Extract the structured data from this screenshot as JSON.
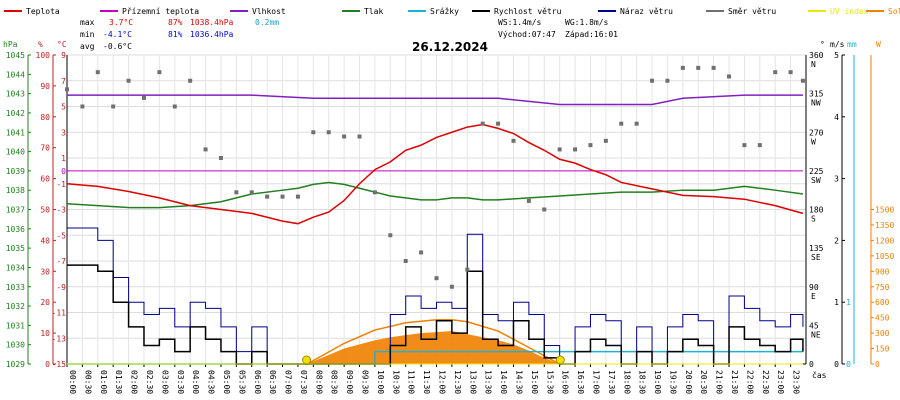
{
  "chart_data": {
    "type": "line",
    "title": "26.12.2024",
    "legend": [
      {
        "label": "Teplota",
        "color": "#dd0000"
      },
      {
        "label": "Přízemní teplota",
        "color": "#c000c0"
      },
      {
        "label": "Vlhkost",
        "color": "#8020c0"
      },
      {
        "label": "Tlak",
        "color": "#208020"
      },
      {
        "label": "Srážky",
        "color": "#20b0d0"
      },
      {
        "label": "Rychlost větru",
        "color": "#000000"
      },
      {
        "label": "Náraz větru",
        "color": "#000090"
      },
      {
        "label": "Směr větru",
        "color": "#707070"
      },
      {
        "label": "UV index",
        "color": "#e8e800"
      },
      {
        "label": "Solar",
        "color": "#f08000"
      }
    ],
    "stats": {
      "max_label": "max",
      "max_temp": "3.7°C",
      "max_hum": "87%",
      "max_press": "1038.4hPa",
      "max_rain": "0.2mm",
      "min_label": "min",
      "min_temp": "-4.1°C",
      "min_hum": "81%",
      "min_press": "1036.4hPa",
      "avg_label": "avg",
      "avg_temp": "-0.6°C",
      "ws": "WS:1.4m/s",
      "wg": "WG:1.8m/s",
      "sunrise": "Východ:07:47",
      "sunset": "Západ:16:01"
    },
    "axes": {
      "hpa_unit": "hPa",
      "pct_unit": "%",
      "temp_unit": "°C",
      "deg_unit": "°",
      "ms_unit": "m/s",
      "mm_unit": "mm",
      "w_unit": "W",
      "hpa_ticks": [
        "1029",
        "1030",
        "1031",
        "1032",
        "1033",
        "1034",
        "1035",
        "1036",
        "1037",
        "1038",
        "1039",
        "1040",
        "1041",
        "1042",
        "1043",
        "1044",
        "1045"
      ],
      "pct_ticks": [
        "0",
        "10",
        "20",
        "30",
        "40",
        "50",
        "60",
        "70",
        "80",
        "90",
        "100"
      ],
      "temp_ticks": [
        "-15",
        "-13",
        "-11",
        "-9",
        "-7",
        "-5",
        "-3",
        "-1",
        "1",
        "3",
        "5",
        "7",
        "9"
      ],
      "temp_zero": "0",
      "dir_ticks": [
        {
          "v": "360",
          "d": "N"
        },
        {
          "v": "315",
          "d": "NW"
        },
        {
          "v": "270",
          "d": "W"
        },
        {
          "v": "225",
          "d": "SW"
        },
        {
          "v": "180",
          "d": "S"
        },
        {
          "v": "135",
          "d": "SE"
        },
        {
          "v": "90",
          "d": "E"
        },
        {
          "v": "45",
          "d": "NE"
        },
        {
          "v": "0",
          "d": ""
        }
      ],
      "ms_ticks": [
        "0",
        "1",
        "2",
        "3",
        "4",
        "5"
      ],
      "mm_ticks": [
        "0",
        "1"
      ],
      "w_ticks": [
        "0",
        "150",
        "300",
        "450",
        "600",
        "750",
        "900",
        "1050",
        "1200",
        "1350",
        "1500"
      ],
      "x_unit": "čas",
      "time_ticks": [
        "00:00",
        "00:30",
        "01:00",
        "01:30",
        "02:00",
        "02:30",
        "03:00",
        "03:30",
        "04:00",
        "04:30",
        "05:00",
        "05:30",
        "06:00",
        "06:30",
        "07:00",
        "07:30",
        "08:00",
        "08:30",
        "09:00",
        "09:30",
        "10:00",
        "10:30",
        "11:00",
        "11:30",
        "12:00",
        "12:30",
        "13:00",
        "13:30",
        "14:00",
        "14:30",
        "15:00",
        "15:30",
        "16:00",
        "16:30",
        "17:00",
        "17:30",
        "18:00",
        "18:30",
        "19:00",
        "19:30",
        "20:00",
        "20:30",
        "21:00",
        "21:30",
        "22:00",
        "22:30",
        "23:00",
        "23:30"
      ]
    },
    "ranges": {
      "temp": [
        -15,
        9
      ],
      "hum": [
        0,
        100
      ],
      "press": [
        1029,
        1045
      ],
      "wind": [
        0,
        5
      ],
      "dir": [
        0,
        360
      ],
      "rain": [
        0,
        1
      ],
      "solar": [
        0,
        1500
      ]
    },
    "series": {
      "temperature": {
        "t": [
          0,
          1,
          2,
          3,
          4,
          5,
          6,
          6.5,
          7,
          7.5,
          8,
          8.5,
          9,
          9.5,
          10,
          10.5,
          11,
          11.5,
          12,
          12.5,
          13,
          13.5,
          14,
          14.5,
          15,
          15.5,
          16,
          16.5,
          17,
          17.5,
          18,
          19,
          20,
          21,
          22,
          23,
          23.9
        ],
        "v": [
          -1.0,
          -1.2,
          -1.6,
          -2.1,
          -2.7,
          -3.0,
          -3.3,
          -3.6,
          -3.9,
          -4.1,
          -3.6,
          -3.2,
          -2.3,
          -1.0,
          0.1,
          0.7,
          1.6,
          2.0,
          2.6,
          3.0,
          3.4,
          3.6,
          3.3,
          2.9,
          2.2,
          1.6,
          0.9,
          0.6,
          0.1,
          -0.3,
          -0.9,
          -1.4,
          -1.9,
          -2.0,
          -2.2,
          -2.7,
          -3.3
        ]
      },
      "ground_temp": {
        "t": [
          0,
          23.9
        ],
        "v": [
          0,
          0
        ]
      },
      "humidity": {
        "t": [
          0,
          2,
          4,
          6,
          8,
          10,
          11,
          12,
          13,
          14,
          15,
          16,
          17,
          18,
          19,
          20,
          22,
          23.9
        ],
        "v": [
          87,
          87,
          87,
          87,
          86,
          86,
          86,
          86,
          86,
          86,
          85,
          84,
          84,
          84,
          84,
          86,
          87,
          87
        ]
      },
      "pressure": {
        "t": [
          0,
          1,
          2,
          3,
          4,
          5,
          6,
          7,
          7.5,
          8,
          8.5,
          9,
          9.5,
          10,
          10.5,
          11,
          11.5,
          12,
          12.5,
          13,
          13.5,
          14,
          15,
          16,
          17,
          18,
          19,
          20,
          21,
          22,
          23,
          23.9
        ],
        "v": [
          1037.3,
          1037.2,
          1037.1,
          1037.1,
          1037.2,
          1037.4,
          1037.8,
          1038.0,
          1038.1,
          1038.3,
          1038.4,
          1038.3,
          1038.1,
          1037.9,
          1037.7,
          1037.6,
          1037.5,
          1037.5,
          1037.6,
          1037.6,
          1037.5,
          1037.5,
          1037.6,
          1037.7,
          1037.8,
          1037.9,
          1037.9,
          1038.0,
          1038.0,
          1038.2,
          1038.0,
          1037.8
        ]
      },
      "rain": {
        "t": [
          0,
          9.99,
          10,
          23.9
        ],
        "v": [
          0,
          0,
          0.2,
          0.2
        ]
      },
      "wind_speed": {
        "t": [
          0,
          1,
          1.5,
          2,
          2.5,
          3,
          3.5,
          4,
          4.5,
          5,
          5.5,
          6,
          6.5,
          7,
          7.5,
          8,
          8.5,
          9,
          9.5,
          10,
          10.5,
          11,
          11.5,
          12,
          12.5,
          13,
          13.5,
          14,
          14.5,
          15,
          15.5,
          16,
          16.5,
          17,
          17.5,
          18,
          18.5,
          19,
          19.5,
          20,
          20.5,
          21,
          21.5,
          22,
          22.5,
          23,
          23.5,
          23.9
        ],
        "v": [
          1.6,
          1.5,
          1.0,
          0.6,
          0.3,
          0.4,
          0.2,
          0.6,
          0.4,
          0.2,
          0.0,
          0.2,
          0.0,
          0.0,
          0.0,
          0.0,
          0.0,
          0.0,
          0.0,
          0.0,
          0.3,
          0.6,
          0.4,
          0.7,
          0.5,
          1.5,
          0.4,
          0.3,
          0.7,
          0.4,
          0.1,
          0.0,
          0.2,
          0.4,
          0.3,
          0.0,
          0.2,
          0.0,
          0.2,
          0.4,
          0.3,
          0.0,
          0.6,
          0.4,
          0.3,
          0.2,
          0.4,
          0.2
        ]
      },
      "wind_gust": {
        "t": [
          0,
          1,
          1.5,
          2,
          2.5,
          3,
          3.5,
          4,
          4.5,
          5,
          5.5,
          6,
          6.5,
          7,
          7.5,
          8,
          8.5,
          9,
          9.5,
          10,
          10.5,
          11,
          11.5,
          12,
          12.5,
          13,
          13.5,
          14,
          14.5,
          15,
          15.5,
          16,
          16.5,
          17,
          17.5,
          18,
          18.5,
          19,
          19.5,
          20,
          20.5,
          21,
          21.5,
          22,
          22.5,
          23,
          23.5,
          23.9
        ],
        "v": [
          2.2,
          2.0,
          1.4,
          1.0,
          0.8,
          0.9,
          0.6,
          1.0,
          0.9,
          0.6,
          0.2,
          0.6,
          0.0,
          0.0,
          0.0,
          0.0,
          0.0,
          0.0,
          0.0,
          0.0,
          0.8,
          1.1,
          0.9,
          1.0,
          0.9,
          2.1,
          0.8,
          0.7,
          1.0,
          0.8,
          0.3,
          0.0,
          0.6,
          0.8,
          0.7,
          0.0,
          0.6,
          0.0,
          0.6,
          0.8,
          0.7,
          0.0,
          1.1,
          0.9,
          0.7,
          0.6,
          0.8,
          0.6
        ]
      },
      "wind_dir": {
        "t": [
          0,
          0.5,
          1,
          1.5,
          2,
          2.5,
          3,
          3.5,
          4,
          4.5,
          5,
          5.5,
          6,
          6.5,
          7,
          7.5,
          8,
          8.5,
          9,
          9.5,
          10,
          10.5,
          11,
          11.5,
          12,
          12.5,
          13,
          13.5,
          14,
          14.5,
          15,
          15.5,
          16,
          16.5,
          17,
          17.5,
          18,
          18.5,
          19,
          19.5,
          20,
          20.5,
          21,
          21.5,
          22,
          22.5,
          23,
          23.5,
          23.9
        ],
        "v": [
          320,
          300,
          340,
          300,
          330,
          310,
          340,
          300,
          330,
          250,
          240,
          200,
          200,
          195,
          195,
          195,
          270,
          270,
          265,
          265,
          200,
          150,
          120,
          130,
          100,
          90,
          110,
          280,
          280,
          260,
          190,
          180,
          250,
          250,
          255,
          260,
          280,
          280,
          330,
          330,
          345,
          345,
          345,
          335,
          255,
          255,
          340,
          340,
          330
        ]
      },
      "uv": {
        "t": [
          0,
          23.9
        ],
        "v": [
          0,
          0
        ]
      },
      "solar_fill": {
        "t": [
          7.8,
          9,
          10,
          10.5,
          11,
          11.5,
          12,
          12.5,
          13,
          13.5,
          14,
          14.5,
          15,
          15.5,
          16
        ],
        "v": [
          0,
          150,
          230,
          260,
          280,
          300,
          310,
          320,
          290,
          260,
          230,
          190,
          130,
          60,
          0
        ]
      },
      "solar_theoretical": {
        "t": [
          7.8,
          9,
          10,
          11,
          12,
          12.5,
          13,
          14,
          15,
          16
        ],
        "v": [
          0,
          200,
          330,
          400,
          430,
          430,
          410,
          320,
          160,
          0
        ]
      },
      "sun_events": {
        "t": [
          7.78,
          16.02
        ],
        "v": [
          0,
          0
        ]
      }
    }
  }
}
